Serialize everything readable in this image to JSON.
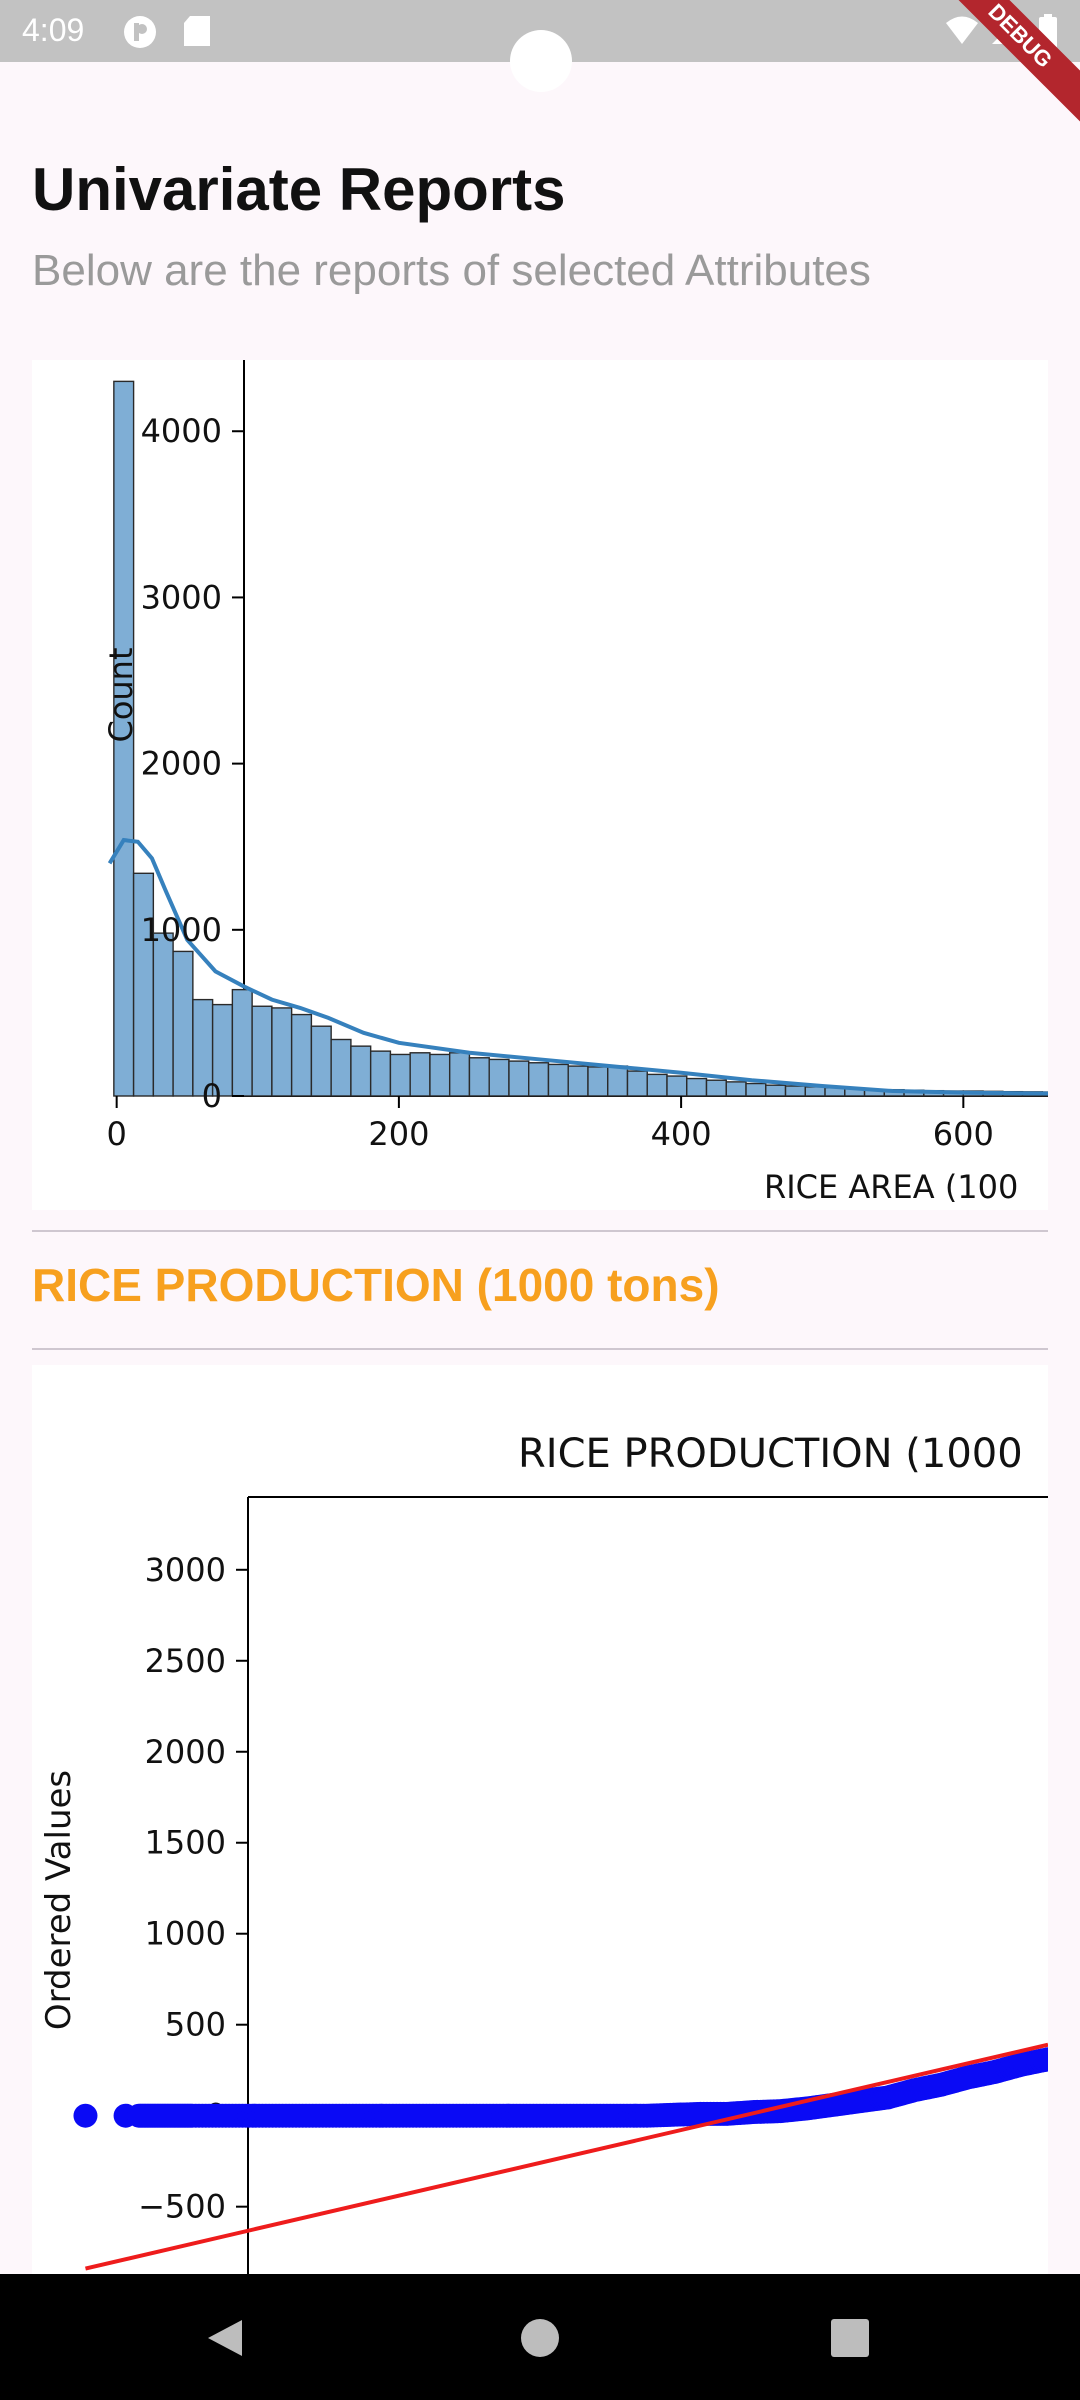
{
  "status_bar": {
    "time": "4:09",
    "debug_label": "DEBUG"
  },
  "header": {
    "title": "Univariate Reports",
    "subtitle": "Below are the reports of selected Attributes"
  },
  "sections": [
    {
      "title": "RICE PRODUCTION (1000 tons)"
    }
  ],
  "chart_data": [
    {
      "type": "bar",
      "subtype": "histogram-with-kde",
      "xlabel": "RICE AREA (100",
      "ylabel": "Count",
      "xlim": [
        -60,
        660
      ],
      "ylim": [
        0,
        4200
      ],
      "xticks": [
        "0",
        "200",
        "400",
        "600"
      ],
      "yticks": [
        "0",
        "1000",
        "2000",
        "3000",
        "4000"
      ],
      "bin_width": 14,
      "bin_start": -2,
      "values": [
        4300,
        1340,
        980,
        870,
        580,
        550,
        640,
        540,
        530,
        490,
        420,
        340,
        300,
        270,
        250,
        260,
        250,
        260,
        230,
        220,
        210,
        200,
        190,
        180,
        175,
        180,
        150,
        130,
        120,
        105,
        95,
        85,
        75,
        65,
        60,
        55,
        50,
        45,
        40,
        38,
        35,
        32,
        30,
        30,
        28,
        26,
        25,
        24
      ],
      "kde": {
        "x": [
          -5,
          5,
          15,
          25,
          35,
          50,
          70,
          90,
          110,
          130,
          150,
          175,
          200,
          250,
          300,
          350,
          400,
          450,
          500,
          550,
          600,
          660
        ],
        "y": [
          1400,
          1540,
          1530,
          1430,
          1230,
          940,
          750,
          660,
          580,
          530,
          470,
          380,
          320,
          260,
          220,
          180,
          140,
          95,
          60,
          30,
          20,
          15
        ]
      },
      "bar_color": "#7faed5",
      "kde_color": "#3681bd"
    },
    {
      "type": "scatter",
      "subtype": "probability-plot",
      "title": "RICE PRODUCTION (1000",
      "ylabel": "Ordered Values",
      "xlim": [
        -4.2,
        3.4
      ],
      "ylim": [
        -870,
        3400
      ],
      "yticks": [
        "−500",
        "0",
        "500",
        "1000",
        "1500",
        "2000",
        "2500",
        "3000"
      ],
      "ytick_values": [
        -500,
        0,
        500,
        1000,
        1500,
        2000,
        2500,
        3000
      ],
      "points_x": [
        -3.8,
        -3.5,
        -3.4,
        -3.3,
        -3.2,
        -3.1,
        -3.0,
        -2.8,
        -2.6,
        -2.4,
        -2.2,
        -2.0,
        -1.8,
        -1.6,
        -1.4,
        -1.2,
        -1.0,
        -0.8,
        -0.6,
        -0.4,
        -0.2,
        0.0,
        0.2,
        0.4,
        0.6,
        0.8,
        1.0,
        1.2,
        1.4,
        1.6,
        1.8,
        2.0,
        2.2,
        2.4,
        2.6,
        2.8,
        3.0,
        3.2,
        3.4
      ],
      "points_y": [
        0,
        0,
        0,
        0,
        0,
        0,
        0,
        0,
        0,
        0,
        0,
        0,
        0,
        0,
        0,
        0,
        0,
        0,
        0,
        0,
        0,
        0,
        0,
        0,
        5,
        10,
        10,
        20,
        25,
        40,
        60,
        80,
        100,
        140,
        170,
        210,
        240,
        280,
        310
      ],
      "fit_line": {
        "x": [
          -3.8,
          3.4
        ],
        "y": [
          -840,
          390
        ]
      },
      "point_color": "#0a0af5",
      "line_color": "#ee1c1c"
    }
  ]
}
